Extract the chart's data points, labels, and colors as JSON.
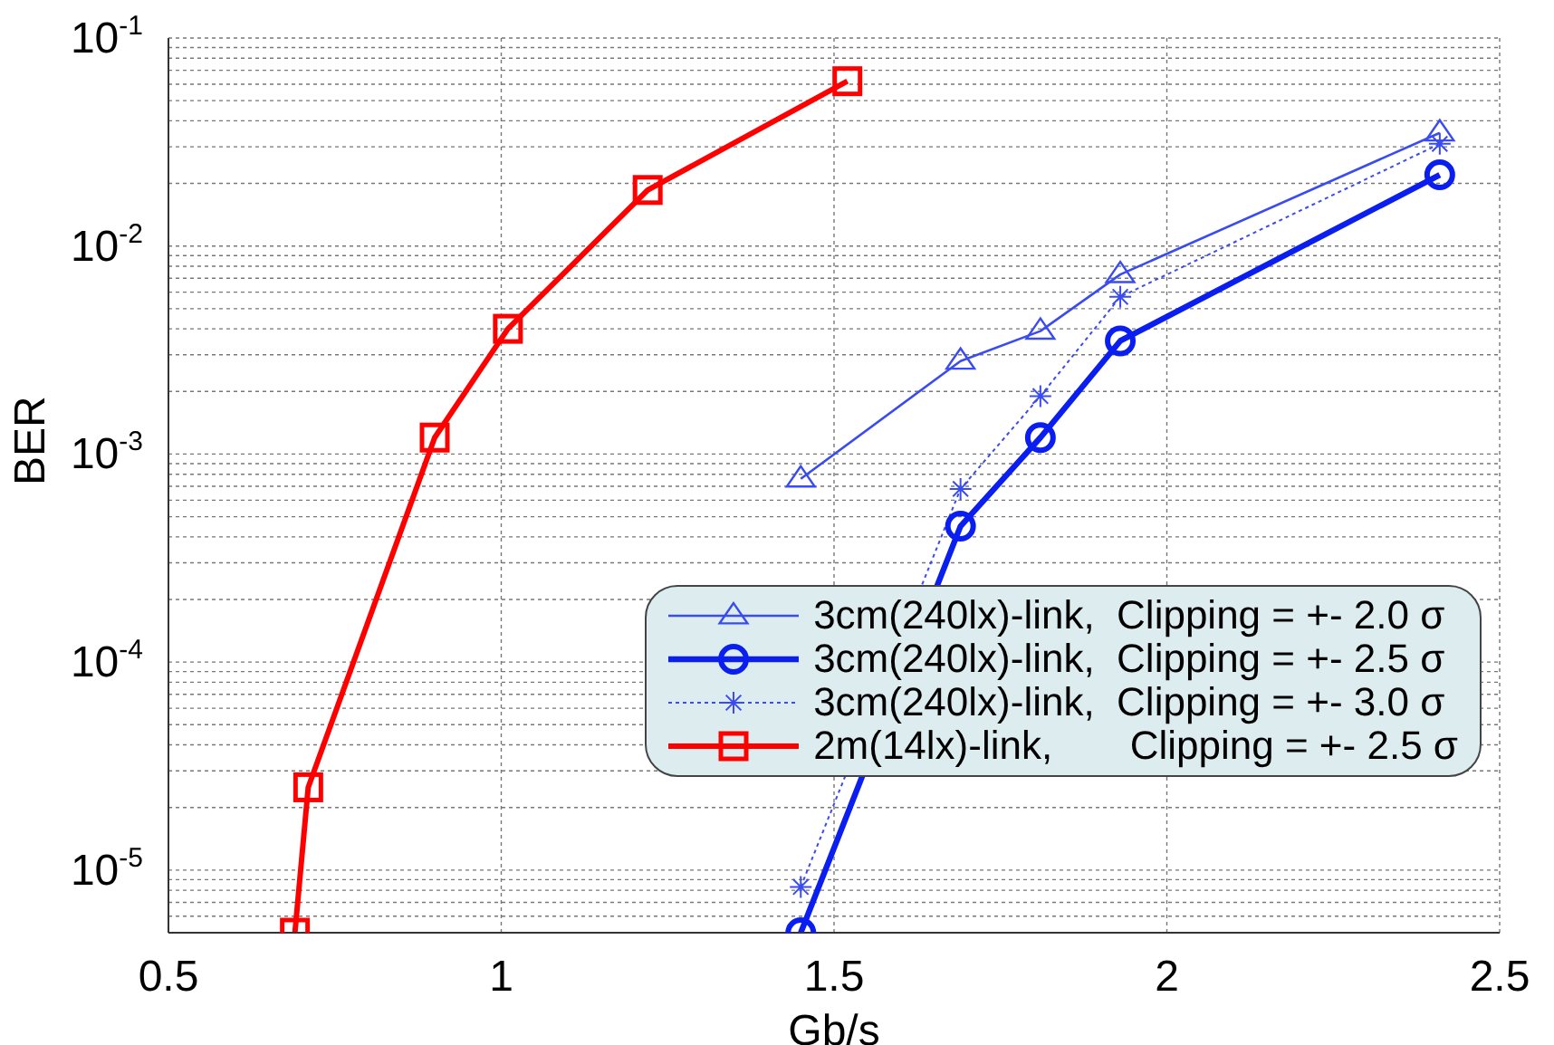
{
  "chart_data": {
    "type": "line",
    "xlabel": "Gb/s",
    "ylabel": "BER",
    "log": "y",
    "grid": true,
    "legend": "bottom right",
    "xlim": [
      0.5,
      2.5
    ],
    "xticks": [
      0.5,
      1,
      1.5,
      2,
      2.5
    ],
    "ylim": [
      5e-06,
      0.1
    ],
    "yticks": [
      {
        "value": 1e-05,
        "label": "10$^{-5}$"
      },
      {
        "value": 0.0001,
        "label": "10$^{-4}$"
      },
      {
        "value": 0.001,
        "label": "10$^{-3}$"
      },
      {
        "value": 0.01,
        "label": "10$^{-2}$"
      },
      {
        "value": 0.1,
        "label": "10$^{-1}$"
      }
    ],
    "series": [
      {
        "name": "3cm(240lx)-link,  Clipping = +- 2.0 σ",
        "color": "#3a4cf0",
        "marker": "triangle",
        "line_style": "solid",
        "x": [
          1.45,
          1.69,
          1.81,
          1.93,
          2.41
        ],
        "values": [
          0.00076,
          0.0028,
          0.0039,
          0.0073,
          0.035
        ]
      },
      {
        "name": "3cm(240lx)-link,  Clipping = +- 2.5 σ",
        "color": "#0a1ef0",
        "marker": "circle",
        "line_style": "solid",
        "x": [
          1.45,
          1.69,
          1.81,
          1.93,
          2.41
        ],
        "values": [
          5e-06,
          0.00045,
          0.0012,
          0.0035,
          0.022
        ]
      },
      {
        "name": "3cm(240lx)-link,  Clipping = +- 3.0 σ",
        "color": "#3a4cf0",
        "marker": "cross",
        "line_style": "dotted",
        "x": [
          1.45,
          1.69,
          1.81,
          1.93,
          2.41
        ],
        "values": [
          8.3e-06,
          0.00068,
          0.0019,
          0.0057,
          0.031
        ]
      },
      {
        "name": "2m(14lx)-link,       Clipping = +- 2.5 σ",
        "color": "#ff0000",
        "marker": "square",
        "line_style": "solid",
        "x": [
          0.69,
          0.71,
          0.9,
          1.01,
          1.22,
          1.52
        ],
        "values": [
          5e-06,
          2.5e-05,
          0.0012,
          0.004,
          0.0186,
          0.062
        ]
      }
    ]
  }
}
